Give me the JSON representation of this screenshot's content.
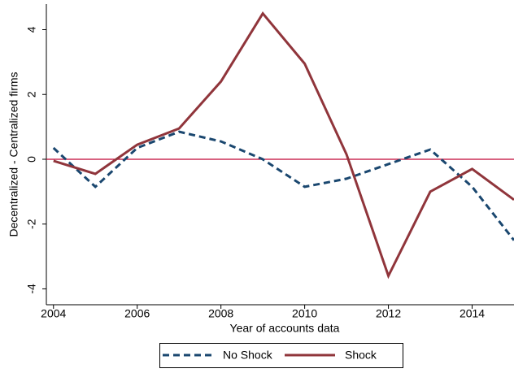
{
  "chart_data": {
    "type": "line",
    "x_label": "Year of accounts data",
    "y_label": "Decentralized - Centralized firms",
    "x": [
      2004,
      2005,
      2006,
      2007,
      2008,
      2009,
      2010,
      2011,
      2012,
      2013,
      2014,
      2015
    ],
    "series": [
      {
        "name": "No Shock",
        "color": "#1a476f",
        "dash": true,
        "values": [
          0.35,
          -0.85,
          0.35,
          0.85,
          0.55,
          0.0,
          -0.85,
          -0.6,
          -0.15,
          0.3,
          -0.85,
          -2.5
        ]
      },
      {
        "name": "Shock",
        "color": "#90353b",
        "dash": false,
        "values": [
          -0.05,
          -0.45,
          0.45,
          0.95,
          2.4,
          4.5,
          2.95,
          0.15,
          -3.6,
          -1.0,
          -0.3,
          -1.25
        ]
      }
    ],
    "reference_line": {
      "value": 0,
      "color": "#c10534"
    },
    "xlim": [
      2003.83,
      2015
    ],
    "ylim": [
      -4.49,
      4.79
    ],
    "xticks": [
      2004,
      2006,
      2008,
      2010,
      2012,
      2014
    ],
    "yticks": [
      -4,
      -2,
      0,
      2,
      4
    ],
    "legend": "bottom"
  }
}
